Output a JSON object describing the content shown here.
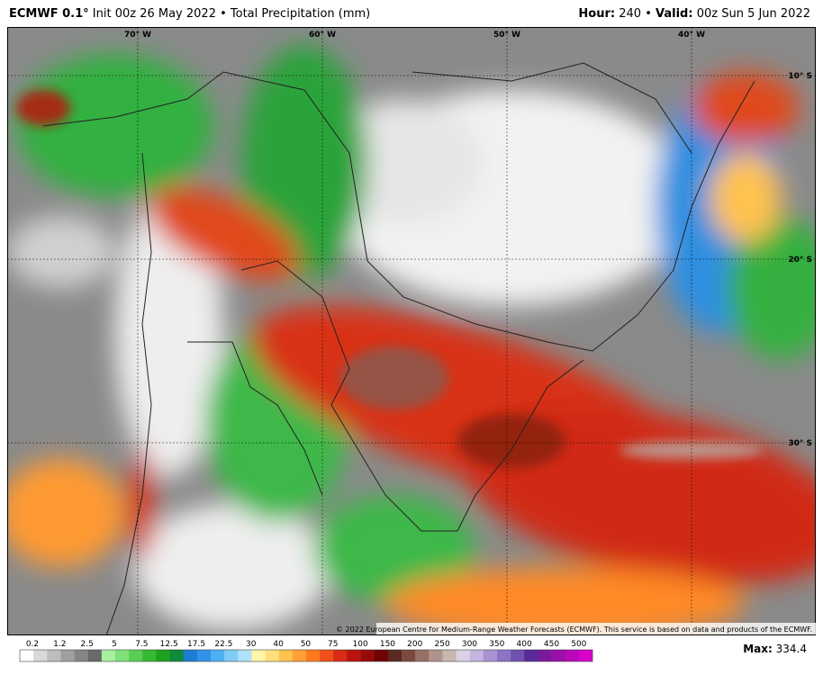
{
  "header": {
    "model": "ECMWF 0.1°",
    "info": "Init 00z 26 May 2022 • Total Precipitation (mm)",
    "hour_label": "Hour:",
    "hour_value": "240 •",
    "valid_label": "Valid:",
    "valid_value": "00z Sun 5 Jun 2022"
  },
  "map": {
    "longitudes": [
      "70° W",
      "60° W",
      "50° W",
      "40° W"
    ],
    "latitudes": [
      "10° S",
      "20° S",
      "30° S"
    ],
    "copyright": "© 2022 European Centre for Medium-Range Weather Forecasts (ECMWF). This service is based on data and products of the ECMWF."
  },
  "colorbar": {
    "labels": [
      0.2,
      1.2,
      2.5,
      5,
      7.5,
      12.5,
      17.5,
      22.5,
      30,
      40,
      50,
      75,
      100,
      150,
      200,
      250,
      300,
      350,
      400,
      450,
      500
    ],
    "colors": [
      "#ffffff",
      "#d9d9d9",
      "#bdbdbd",
      "#a0a0a0",
      "#858585",
      "#6a6a6a",
      "#a8f0a0",
      "#7fe07a",
      "#5acd55",
      "#36b832",
      "#1fa01f",
      "#0d8a3a",
      "#1f7ad6",
      "#2f94e8",
      "#4fb0f2",
      "#7fcdf6",
      "#aee2fa",
      "#fff4a8",
      "#ffe07a",
      "#ffc24f",
      "#ffa033",
      "#ff7a1f",
      "#f0501a",
      "#d82a14",
      "#b8140f",
      "#960a0a",
      "#6e0404",
      "#5a2a22",
      "#7a4a40",
      "#967066",
      "#b0948c",
      "#c8b6b0",
      "#dcd0e6",
      "#c4b4e0",
      "#a894d4",
      "#8c74c4",
      "#7050b0",
      "#5a2a9a",
      "#7a1a9a",
      "#9a10a8",
      "#b808b8",
      "#d800cc"
    ]
  },
  "footer": {
    "max_label": "Max:",
    "max_value": "334.4"
  }
}
